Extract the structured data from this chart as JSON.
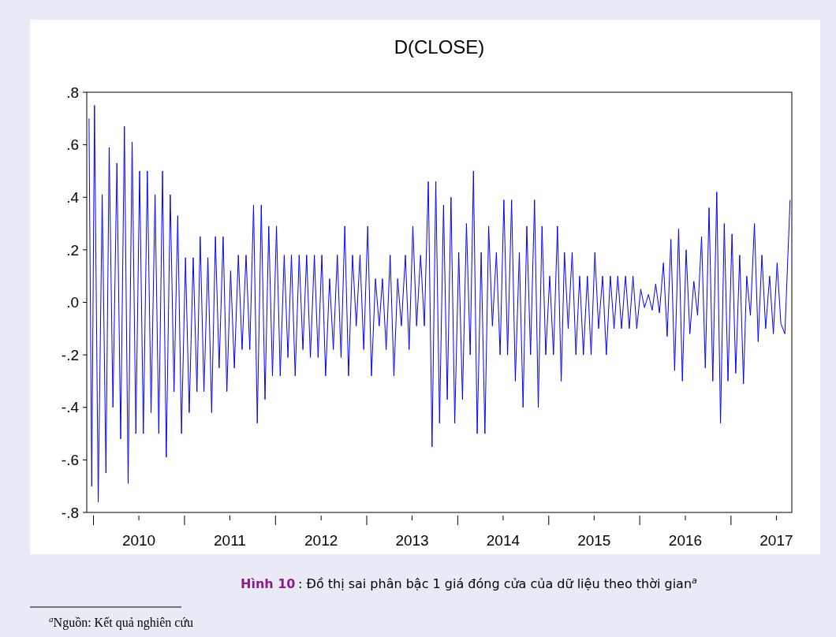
{
  "chart_data": {
    "type": "line",
    "title": "D(CLOSE)",
    "annotations": [
      "Hình 10",
      ": Đồ thị sai phân bậc 1 giá đóng cửa của dữ liệu theo thời gian$^{a}$",
      "$^{a}$Nguồn: Kết quả nghiên cứu"
    ],
    "xlim": [
      "2009-12-05",
      "2017-09-02"
    ],
    "xticks": [
      {
        "value": "2010-01-01",
        "label": null
      },
      {
        "value": "2010-07-02",
        "label": "2010"
      },
      {
        "value": "2011-01-01",
        "label": null
      },
      {
        "value": "2011-07-02",
        "label": "2011"
      },
      {
        "value": "2012-01-01",
        "label": null
      },
      {
        "value": "2012-07-02",
        "label": "2012"
      },
      {
        "value": "2013-01-01",
        "label": null
      },
      {
        "value": "2013-07-02",
        "label": "2013"
      },
      {
        "value": "2014-01-01",
        "label": null
      },
      {
        "value": "2014-07-02",
        "label": "2014"
      },
      {
        "value": "2015-01-01",
        "label": null
      },
      {
        "value": "2015-07-02",
        "label": "2015"
      },
      {
        "value": "2016-01-01",
        "label": null
      },
      {
        "value": "2016-07-02",
        "label": "2016"
      },
      {
        "value": "2017-01-01",
        "label": null
      },
      {
        "value": "2017-07-02",
        "label": "2017"
      }
    ],
    "ylim": [
      -0.8,
      0.8
    ],
    "yticks": [
      {
        "value": -0.8,
        "label": "-.8"
      },
      {
        "value": -0.6,
        "label": "-.6"
      },
      {
        "value": -0.4,
        "label": "-.4"
      },
      {
        "value": -0.2,
        "label": "-.2"
      },
      {
        "value": 0,
        "label": ".0"
      },
      {
        "value": 0.2,
        "label": ".2"
      },
      {
        "value": 0.4,
        "label": ".4"
      },
      {
        "value": 0.6,
        "label": ".6"
      },
      {
        "value": 0.8,
        "label": ".8"
      }
    ],
    "grid": false,
    "marker": "none",
    "line_style": "solid",
    "series": [
      {
        "color": "#0000ff",
        "x": [
          "2009-12-14",
          "2009-12-25",
          "2010-01-05",
          "2010-01-20",
          "2010-02-05",
          "2010-02-20",
          "2010-03-05",
          "2010-03-20",
          "2010-04-05",
          "2010-04-20",
          "2010-05-05",
          "2010-05-20",
          "2010-06-05",
          "2010-06-20",
          "2010-07-05",
          "2010-07-20",
          "2010-08-05",
          "2010-08-20",
          "2010-09-05",
          "2010-09-20",
          "2010-10-05",
          "2010-10-20",
          "2010-11-05",
          "2010-11-20",
          "2010-12-05",
          "2010-12-20",
          "2011-01-05",
          "2011-01-20",
          "2011-02-05",
          "2011-02-20",
          "2011-03-05",
          "2011-03-20",
          "2011-04-05",
          "2011-04-20",
          "2011-05-05",
          "2011-05-20",
          "2011-06-05",
          "2011-06-20",
          "2011-07-05",
          "2011-07-20",
          "2011-08-05",
          "2011-08-20",
          "2011-09-05",
          "2011-09-20",
          "2011-10-05",
          "2011-10-20",
          "2011-11-05",
          "2011-11-20",
          "2011-12-05",
          "2011-12-20",
          "2012-01-05",
          "2012-01-20",
          "2012-02-05",
          "2012-02-20",
          "2012-03-05",
          "2012-03-20",
          "2012-04-05",
          "2012-04-20",
          "2012-05-05",
          "2012-05-20",
          "2012-06-05",
          "2012-06-20",
          "2012-07-05",
          "2012-07-20",
          "2012-08-05",
          "2012-08-20",
          "2012-09-05",
          "2012-09-20",
          "2012-10-05",
          "2012-10-20",
          "2012-11-05",
          "2012-11-20",
          "2012-12-05",
          "2012-12-20",
          "2013-01-05",
          "2013-01-20",
          "2013-02-05",
          "2013-02-20",
          "2013-03-05",
          "2013-03-20",
          "2013-04-05",
          "2013-04-20",
          "2013-05-05",
          "2013-05-20",
          "2013-06-05",
          "2013-06-20",
          "2013-07-05",
          "2013-07-20",
          "2013-08-05",
          "2013-08-20",
          "2013-09-05",
          "2013-09-20",
          "2013-10-05",
          "2013-10-20",
          "2013-11-05",
          "2013-11-20",
          "2013-12-05",
          "2013-12-20",
          "2014-01-05",
          "2014-01-20",
          "2014-02-05",
          "2014-02-20",
          "2014-03-05",
          "2014-03-20",
          "2014-04-05",
          "2014-04-20",
          "2014-05-05",
          "2014-05-20",
          "2014-06-05",
          "2014-06-20",
          "2014-07-05",
          "2014-07-20",
          "2014-08-05",
          "2014-08-20",
          "2014-09-05",
          "2014-09-20",
          "2014-10-05",
          "2014-10-20",
          "2014-11-05",
          "2014-11-20",
          "2014-12-05",
          "2014-12-20",
          "2015-01-05",
          "2015-01-20",
          "2015-02-05",
          "2015-02-20",
          "2015-03-05",
          "2015-03-20",
          "2015-04-05",
          "2015-04-20",
          "2015-05-05",
          "2015-05-20",
          "2015-06-05",
          "2015-06-20",
          "2015-07-05",
          "2015-07-20",
          "2015-08-05",
          "2015-08-20",
          "2015-09-05",
          "2015-09-20",
          "2015-10-05",
          "2015-10-20",
          "2015-11-05",
          "2015-11-20",
          "2015-12-05",
          "2015-12-20",
          "2016-01-05",
          "2016-01-20",
          "2016-02-05",
          "2016-02-20",
          "2016-03-05",
          "2016-03-20",
          "2016-04-05",
          "2016-04-20",
          "2016-05-05",
          "2016-05-20",
          "2016-06-05",
          "2016-06-20",
          "2016-07-05",
          "2016-07-20",
          "2016-08-05",
          "2016-08-20",
          "2016-09-05",
          "2016-09-20",
          "2016-10-05",
          "2016-10-20",
          "2016-11-05",
          "2016-11-20",
          "2016-12-05",
          "2016-12-20",
          "2017-01-05",
          "2017-01-20",
          "2017-02-05",
          "2017-02-20",
          "2017-03-05",
          "2017-03-20",
          "2017-04-05",
          "2017-04-20",
          "2017-05-05",
          "2017-05-20",
          "2017-06-05",
          "2017-06-20",
          "2017-07-05",
          "2017-07-20",
          "2017-08-05",
          "2017-08-26"
        ],
        "values": [
          0.7,
          -0.7,
          0.75,
          -0.76,
          0.41,
          -0.65,
          0.59,
          -0.4,
          0.53,
          -0.52,
          0.67,
          -0.69,
          0.61,
          -0.5,
          0.5,
          -0.5,
          0.5,
          -0.42,
          0.41,
          -0.5,
          0.5,
          -0.59,
          0.41,
          -0.34,
          0.33,
          -0.5,
          0.17,
          -0.42,
          0.17,
          -0.34,
          0.25,
          -0.34,
          0.17,
          -0.42,
          0.25,
          -0.25,
          0.25,
          -0.34,
          0.12,
          -0.25,
          0.18,
          -0.18,
          0.18,
          -0.18,
          0.37,
          -0.46,
          0.37,
          -0.37,
          0.29,
          -0.28,
          0.29,
          -0.28,
          0.18,
          -0.21,
          0.18,
          -0.28,
          0.18,
          -0.18,
          0.18,
          -0.21,
          0.18,
          -0.21,
          0.18,
          -0.28,
          0.09,
          -0.18,
          0.18,
          -0.21,
          0.29,
          -0.28,
          0.18,
          -0.09,
          0.18,
          -0.18,
          0.29,
          -0.28,
          0.09,
          -0.09,
          0.09,
          -0.18,
          0.18,
          -0.28,
          0.09,
          -0.09,
          0.18,
          -0.18,
          0.29,
          -0.09,
          0.18,
          -0.09,
          0.46,
          -0.55,
          0.46,
          -0.46,
          0.37,
          -0.37,
          0.4,
          -0.46,
          0.19,
          -0.37,
          0.3,
          -0.2,
          0.5,
          -0.5,
          0.19,
          -0.5,
          0.29,
          -0.09,
          0.19,
          -0.2,
          0.39,
          -0.2,
          0.39,
          -0.3,
          0.19,
          -0.4,
          0.29,
          -0.2,
          0.39,
          -0.4,
          0.29,
          -0.2,
          0.1,
          -0.2,
          0.29,
          -0.3,
          0.19,
          -0.1,
          0.19,
          -0.2,
          0.1,
          -0.2,
          0.1,
          -0.2,
          0.19,
          -0.1,
          0.1,
          -0.2,
          0.1,
          -0.1,
          0.1,
          -0.1,
          0.1,
          -0.1,
          0.1,
          -0.1,
          0.05,
          -0.02,
          0.03,
          -0.03,
          0.07,
          -0.04,
          0.15,
          -0.13,
          0.24,
          -0.26,
          0.28,
          -0.3,
          0.2,
          -0.12,
          0.08,
          -0.05,
          0.25,
          -0.25,
          0.36,
          -0.3,
          0.42,
          -0.46,
          0.3,
          -0.3,
          0.26,
          -0.27,
          0.18,
          -0.31,
          0.1,
          -0.05,
          0.3,
          -0.15,
          0.18,
          -0.1,
          0.1,
          -0.12,
          0.15,
          -0.08,
          -0.12,
          0.39
        ]
      }
    ]
  }
}
